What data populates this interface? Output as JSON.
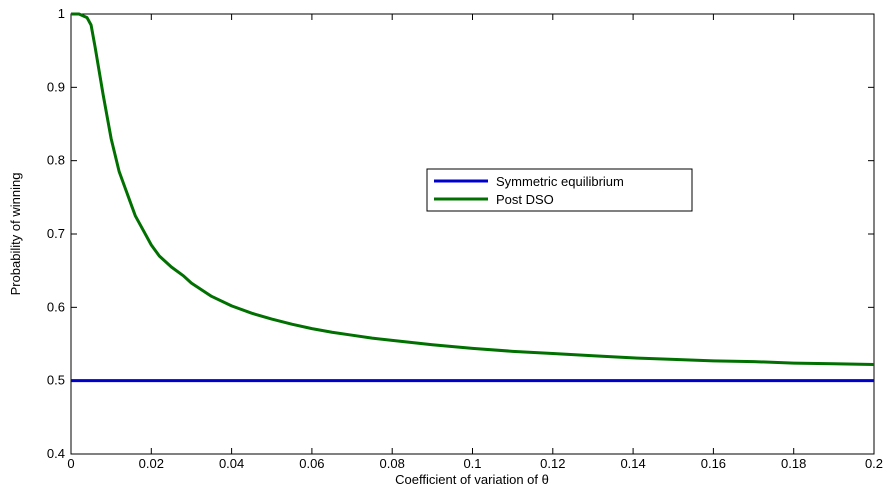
{
  "chart_data": {
    "type": "line",
    "title": "",
    "xlabel": "Coefficient of variation of θ",
    "ylabel": "Probability of winning",
    "xlim": [
      0,
      0.2
    ],
    "ylim": [
      0.4,
      1
    ],
    "x_ticks": [
      "0",
      "0.02",
      "0.04",
      "0.06",
      "0.08",
      "0.1",
      "0.12",
      "0.14",
      "0.16",
      "0.18",
      "0.2"
    ],
    "y_ticks": [
      "0.4",
      "0.5",
      "0.6",
      "0.7",
      "0.8",
      "0.9",
      "1"
    ],
    "grid": false,
    "legend_position": "center-right",
    "series": [
      {
        "name": "Symmetric equilibrium",
        "color": "#0000cc",
        "x": [
          0,
          0.2
        ],
        "y": [
          0.5,
          0.5
        ]
      },
      {
        "name": "Post DSO",
        "color": "#007000",
        "x": [
          0,
          0.002,
          0.004,
          0.005,
          0.006,
          0.008,
          0.01,
          0.012,
          0.014,
          0.016,
          0.018,
          0.02,
          0.022,
          0.025,
          0.028,
          0.03,
          0.035,
          0.04,
          0.045,
          0.05,
          0.055,
          0.06,
          0.065,
          0.07,
          0.075,
          0.08,
          0.09,
          0.1,
          0.11,
          0.12,
          0.13,
          0.14,
          0.15,
          0.16,
          0.17,
          0.18,
          0.19,
          0.2
        ],
        "y": [
          1.0,
          1.0,
          0.995,
          0.985,
          0.955,
          0.89,
          0.83,
          0.785,
          0.755,
          0.725,
          0.705,
          0.685,
          0.67,
          0.655,
          0.643,
          0.633,
          0.615,
          0.602,
          0.592,
          0.584,
          0.577,
          0.571,
          0.566,
          0.562,
          0.558,
          0.555,
          0.549,
          0.544,
          0.54,
          0.537,
          0.534,
          0.531,
          0.529,
          0.527,
          0.526,
          0.524,
          0.523,
          0.522
        ]
      }
    ]
  }
}
